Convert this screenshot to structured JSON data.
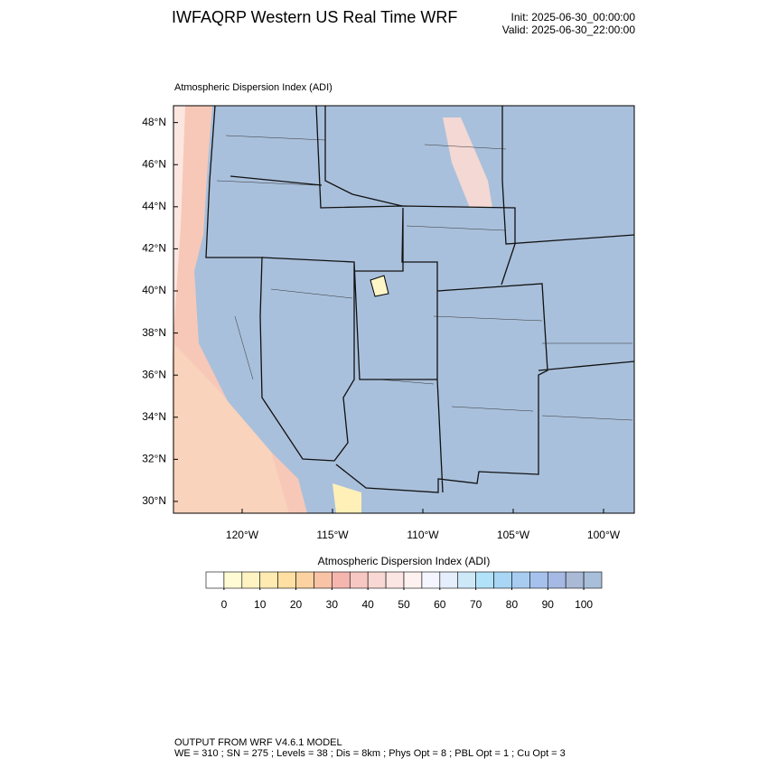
{
  "header": {
    "title": "IWFAQRP Western US Real Time WRF",
    "init": "Init: 2025-06-30_00:00:00",
    "valid": "Valid: 2025-06-30_22:00:00"
  },
  "map": {
    "field_label": "Atmospheric Dispersion Index   (ADI)",
    "xlim": [
      -123.8,
      -98.3
    ],
    "ylim": [
      29.44,
      48.8
    ],
    "xticks": [
      {
        "value": -120,
        "label": "120°W"
      },
      {
        "value": -115,
        "label": "115°W"
      },
      {
        "value": -110,
        "label": "110°W"
      },
      {
        "value": -105,
        "label": "105°W"
      },
      {
        "value": -100,
        "label": "100°W"
      }
    ],
    "yticks": [
      {
        "value": 30,
        "label": "30°N"
      },
      {
        "value": 32,
        "label": "32°N"
      },
      {
        "value": 34,
        "label": "34°N"
      },
      {
        "value": 36,
        "label": "36°N"
      },
      {
        "value": 38,
        "label": "38°N"
      },
      {
        "value": 40,
        "label": "40°N"
      },
      {
        "value": 42,
        "label": "42°N"
      },
      {
        "value": 44,
        "label": "44°N"
      },
      {
        "value": 46,
        "label": "46°N"
      },
      {
        "value": 48,
        "label": "48°N"
      }
    ]
  },
  "colorbar": {
    "title": "Atmospheric Dispersion Index  (ADI)",
    "lim": [
      -5,
      105
    ],
    "ticks": [
      0,
      10,
      20,
      30,
      40,
      50,
      60,
      70,
      80,
      90,
      100
    ],
    "colors": [
      "#ffffff",
      "#fffbd5",
      "#fff3c2",
      "#ffebb2",
      "#ffe0a2",
      "#fcd2a0",
      "#f9c3a6",
      "#f5b6b0",
      "#f7c7c3",
      "#f9d8d4",
      "#fbe6e3",
      "#fdf2f0",
      "#f4f5ff",
      "#e4eefc",
      "#cde9f8",
      "#b2e2f9",
      "#a8d6f4",
      "#a8ccf0",
      "#a6c2ec",
      "#a6b9e4",
      "#aab9d6",
      "#a9bed9"
    ]
  },
  "footer": {
    "line1": "OUTPUT FROM WRF V4.6.1 MODEL",
    "line2": "WE = 310 ; SN = 275 ; Levels = 38 ; Dis = 8km ; Phys Opt = 8 ; PBL Opt = 1 ; Cu Opt = 3"
  }
}
